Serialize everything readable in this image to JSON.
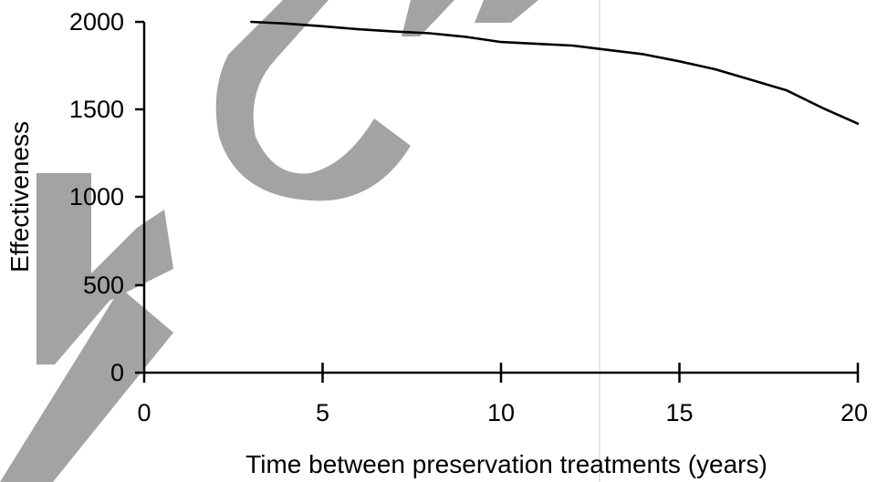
{
  "chart_data": {
    "type": "line",
    "title": "",
    "xlabel": "Time between preservation treatments (years)",
    "ylabel": "Effectiveness",
    "xlim": [
      0,
      20
    ],
    "ylim": [
      0,
      2000
    ],
    "x_ticks": [
      0,
      5,
      10,
      15,
      20
    ],
    "y_ticks": [
      0,
      500,
      1000,
      1500,
      2000
    ],
    "x_tick_labels": [
      "0",
      "5",
      "10",
      "15",
      "20"
    ],
    "y_tick_labels": [
      "0",
      "500",
      "1000",
      "1500",
      "2000"
    ],
    "grid": false,
    "legend": "none",
    "series": [
      {
        "x": [
          3,
          4,
          5,
          6,
          7,
          8,
          9,
          10,
          11,
          12,
          13,
          14,
          15,
          16,
          17,
          18,
          19,
          20
        ],
        "y": [
          2000,
          1990,
          1975,
          1958,
          1945,
          1935,
          1915,
          1885,
          1875,
          1865,
          1840,
          1815,
          1775,
          1730,
          1670,
          1610,
          1510,
          1420
        ]
      }
    ]
  },
  "colors": {
    "series_line": "#000000",
    "axes": "#000000",
    "watermark": "#a3a3a3"
  }
}
